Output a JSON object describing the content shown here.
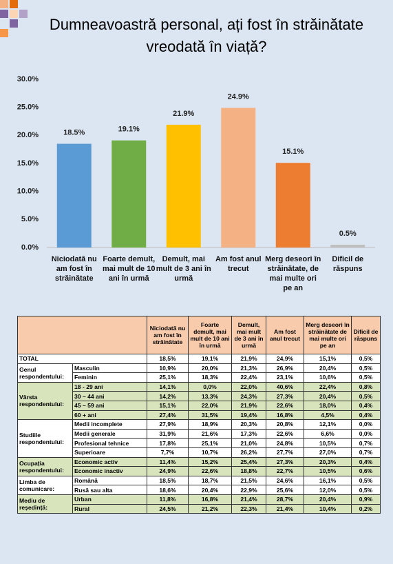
{
  "chart_data": {
    "type": "bar",
    "title": "Dumneavoastră personal, ați fost în străinătate vreodată în viață?",
    "categories": [
      "Niciodată nu am fost în străinătate",
      "Foarte demult, mai mult de 10 ani în urmă",
      "Demult, mai mult de 3 ani în urmă",
      "Am fost anul trecut",
      "Merg deseori în străinătate, de mai multe ori pe an",
      "Dificil de răspuns"
    ],
    "values": [
      18.5,
      19.1,
      21.9,
      24.9,
      15.1,
      0.5
    ],
    "value_labels": [
      "18.5%",
      "19.1%",
      "21.9%",
      "24.9%",
      "15.1%",
      "0.5%"
    ],
    "colors": [
      "#5b9bd5",
      "#70ad47",
      "#ffc000",
      "#f4b183",
      "#ed7d31",
      "#bfbfbf"
    ],
    "ylim": [
      0,
      30
    ],
    "yticks": [
      {
        "value": 0,
        "label": "0.0%"
      },
      {
        "value": 5,
        "label": "5.0%"
      },
      {
        "value": 10,
        "label": "10.0%"
      },
      {
        "value": 15,
        "label": "15.0%"
      },
      {
        "value": 20,
        "label": "20.0%"
      },
      {
        "value": 25,
        "label": "25.0%"
      },
      {
        "value": 30,
        "label": "30.0%"
      }
    ],
    "grid": false
  },
  "table": {
    "header": [
      "Niciodată nu am fost în străinătate",
      "Foarte demult, mai mult de 10 ani în urmă",
      "Demult, mai mult de 3 ani în urmă",
      "Am fost anul trecut",
      "Merg deseori în străinătate de mai multe ori pe an",
      "Dificil de răspuns"
    ],
    "total": {
      "label": "TOTAL",
      "values": [
        "18,5%",
        "19,1%",
        "21,9%",
        "24,9%",
        "15,1%",
        "0,5%"
      ]
    },
    "groups": [
      {
        "name": "Genul respondentului:",
        "rows": [
          {
            "label": "Masculin",
            "values": [
              "10,9%",
              "20,0%",
              "21,3%",
              "26,9%",
              "20,4%",
              "0,5%"
            ]
          },
          {
            "label": "Feminin",
            "values": [
              "25,1%",
              "18,3%",
              "22,4%",
              "23,1%",
              "10,6%",
              "0,5%"
            ]
          }
        ]
      },
      {
        "name": "Vârsta respondentului:",
        "rows": [
          {
            "label": "18 - 29 ani",
            "values": [
              "14,1%",
              "0,0%",
              "22,0%",
              "40,6%",
              "22,4%",
              "0,8%"
            ]
          },
          {
            "label": "30 – 44 ani",
            "values": [
              "14,2%",
              "13,3%",
              "24,3%",
              "27,3%",
              "20,4%",
              "0,5%"
            ]
          },
          {
            "label": "45 – 59 ani",
            "values": [
              "15,1%",
              "22,0%",
              "21,9%",
              "22,6%",
              "18,0%",
              "0,4%"
            ]
          },
          {
            "label": "60 + ani",
            "values": [
              "27,4%",
              "31,5%",
              "19,4%",
              "16,8%",
              "4,5%",
              "0,4%"
            ]
          }
        ]
      },
      {
        "name": "Studiile respondentului:",
        "rows": [
          {
            "label": "Medii incomplete",
            "values": [
              "27,9%",
              "18,9%",
              "20,3%",
              "20,8%",
              "12,1%",
              "0,0%"
            ]
          },
          {
            "label": "Medii generale",
            "values": [
              "31,9%",
              "21,6%",
              "17,3%",
              "22,6%",
              "6,6%",
              "0,0%"
            ]
          },
          {
            "label": "Profesional tehnice",
            "values": [
              "17,8%",
              "25,1%",
              "21,0%",
              "24,8%",
              "10,5%",
              "0,7%"
            ]
          },
          {
            "label": "Superioare",
            "values": [
              "7,7%",
              "10,7%",
              "26,2%",
              "27,7%",
              "27,0%",
              "0,7%"
            ]
          }
        ]
      },
      {
        "name": "Ocupația respondentului:",
        "rows": [
          {
            "label": "Economic activ",
            "values": [
              "11,4%",
              "15,2%",
              "25,4%",
              "27,3%",
              "20,3%",
              "0,4%"
            ]
          },
          {
            "label": "Economic inactiv",
            "values": [
              "24,9%",
              "22,6%",
              "18,8%",
              "22,7%",
              "10,5%",
              "0,6%"
            ]
          }
        ]
      },
      {
        "name": "Limba de comunicare:",
        "rows": [
          {
            "label": "Română",
            "values": [
              "18,5%",
              "18,7%",
              "21,5%",
              "24,6%",
              "16,1%",
              "0,5%"
            ]
          },
          {
            "label": "Rusă sau alta",
            "values": [
              "18,6%",
              "20,4%",
              "22,9%",
              "25,6%",
              "12,0%",
              "0,5%"
            ]
          }
        ]
      },
      {
        "name": "Mediu de reședință:",
        "rows": [
          {
            "label": "Urban",
            "values": [
              "11,8%",
              "16,8%",
              "21,4%",
              "28,7%",
              "20,4%",
              "0,9%"
            ]
          },
          {
            "label": "Rural",
            "values": [
              "24,5%",
              "21,2%",
              "22,3%",
              "21,4%",
              "10,4%",
              "0,2%"
            ]
          }
        ]
      }
    ]
  }
}
